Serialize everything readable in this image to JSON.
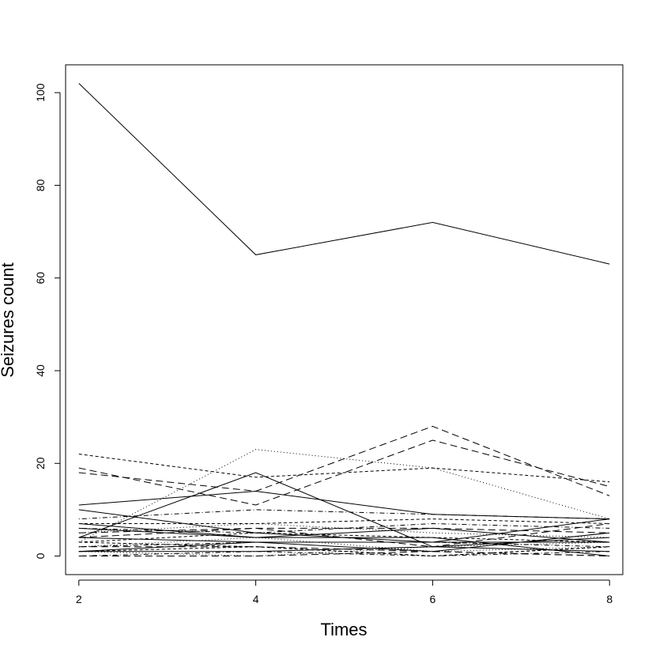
{
  "chart_data": {
    "type": "line",
    "title": "",
    "xlabel": "Times",
    "ylabel": "Seizures count",
    "x": [
      2,
      4,
      6,
      8
    ],
    "xlim": [
      1.85,
      8.15
    ],
    "ylim": [
      -4,
      106
    ],
    "x_ticks": [
      "2",
      "4",
      "6",
      "8"
    ],
    "y_ticks": [
      "0",
      "20",
      "40",
      "60",
      "80",
      "100"
    ],
    "grid": false,
    "legend": "none",
    "line_color": "#000000",
    "series": [
      {
        "values": [
          102,
          65,
          72,
          63
        ],
        "dash": "solid"
      },
      {
        "values": [
          11,
          14,
          9,
          8
        ],
        "dash": "solid"
      },
      {
        "values": [
          22,
          17,
          19,
          16
        ],
        "dash": "short"
      },
      {
        "values": [
          18,
          14,
          28,
          13
        ],
        "dash": "long"
      },
      {
        "values": [
          19,
          11,
          25,
          15
        ],
        "dash": "long"
      },
      {
        "values": [
          3,
          23,
          19,
          8
        ],
        "dash": "dotted"
      },
      {
        "values": [
          4,
          18,
          2,
          4
        ],
        "dash": "solid"
      },
      {
        "values": [
          10,
          5,
          3,
          3
        ],
        "dash": "solid"
      },
      {
        "values": [
          6,
          4,
          4,
          0
        ],
        "dash": "solid"
      },
      {
        "values": [
          8,
          10,
          9,
          8
        ],
        "dash": "dotdash"
      },
      {
        "values": [
          7,
          7,
          8,
          7
        ],
        "dash": "short"
      },
      {
        "values": [
          5,
          6,
          6,
          5
        ],
        "dash": "long"
      },
      {
        "values": [
          4,
          3,
          3,
          8
        ],
        "dash": "solid"
      },
      {
        "values": [
          2,
          4,
          1,
          2
        ],
        "dash": "dotted"
      },
      {
        "values": [
          1,
          3,
          1,
          5
        ],
        "dash": "solid"
      },
      {
        "values": [
          3,
          2,
          0,
          2
        ],
        "dash": "short"
      },
      {
        "values": [
          0,
          1,
          0,
          1
        ],
        "dash": "dotdash"
      },
      {
        "values": [
          1,
          0,
          2,
          3
        ],
        "dash": "dotted"
      },
      {
        "values": [
          2,
          2,
          1,
          0
        ],
        "dash": "long"
      },
      {
        "values": [
          6,
          5,
          7,
          6
        ],
        "dash": "dotdash"
      },
      {
        "values": [
          5,
          7,
          5,
          4
        ],
        "dash": "dotted"
      },
      {
        "values": [
          3,
          5,
          4,
          3
        ],
        "dash": "short"
      },
      {
        "values": [
          1,
          1,
          2,
          1
        ],
        "dash": "solid"
      },
      {
        "values": [
          0,
          0,
          1,
          0
        ],
        "dash": "long"
      },
      {
        "values": [
          2,
          3,
          3,
          2
        ],
        "dash": "dotdash"
      },
      {
        "values": [
          4,
          6,
          2,
          7
        ],
        "dash": "long"
      },
      {
        "values": [
          7,
          4,
          6,
          3
        ],
        "dash": "solid"
      },
      {
        "values": [
          1,
          2,
          0,
          2
        ],
        "dash": "short"
      }
    ]
  }
}
